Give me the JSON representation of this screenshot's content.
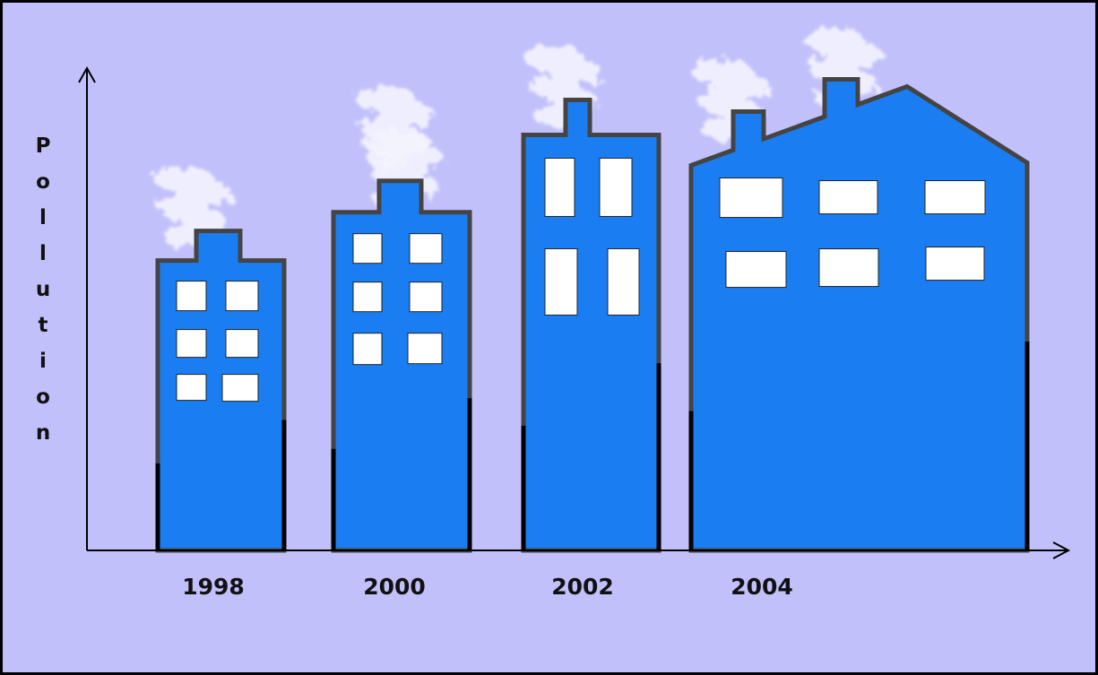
{
  "chart_data": {
    "type": "bar",
    "y_label": "Pollution",
    "categories": [
      "1998",
      "2000",
      "2002",
      "2004"
    ],
    "values": [
      60,
      70,
      86,
      96
    ],
    "color": "#1a7ef2",
    "ylim": [
      0,
      100
    ]
  }
}
